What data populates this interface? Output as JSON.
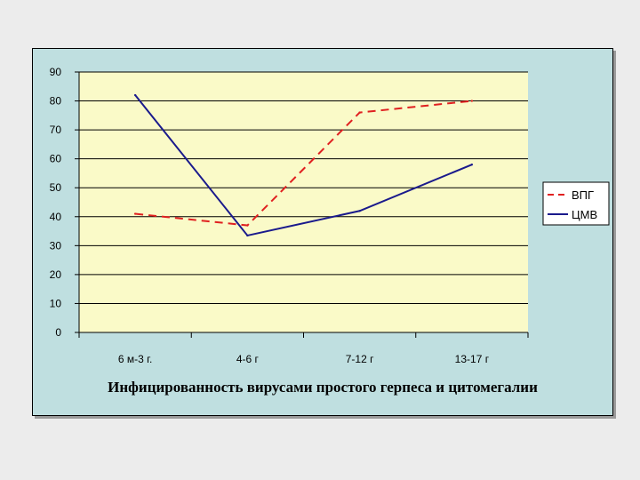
{
  "chart_data": {
    "type": "line",
    "title": "Инфицированность вирусами простого герпеса и цитомегалии",
    "xlabel": "",
    "ylabel": "",
    "categories": [
      "6 м-3 г.",
      "4-6 г",
      "7-12 г",
      "13-17 г"
    ],
    "ylim": [
      0,
      90
    ],
    "yticks": [
      0,
      10,
      20,
      30,
      40,
      50,
      60,
      70,
      80,
      90
    ],
    "grid": true,
    "legend": "right",
    "series": [
      {
        "name": "ВПГ",
        "values": [
          41,
          37,
          76,
          80
        ],
        "color": "#e02020",
        "dash": "dashed"
      },
      {
        "name": "ЦМВ",
        "values": [
          82,
          33.5,
          42,
          58
        ],
        "color": "#1a1a8c",
        "dash": "solid"
      }
    ],
    "colors": {
      "frame_background": "#bfdfe0",
      "plot_background": "#fafac8",
      "gridline": "#000000"
    }
  }
}
